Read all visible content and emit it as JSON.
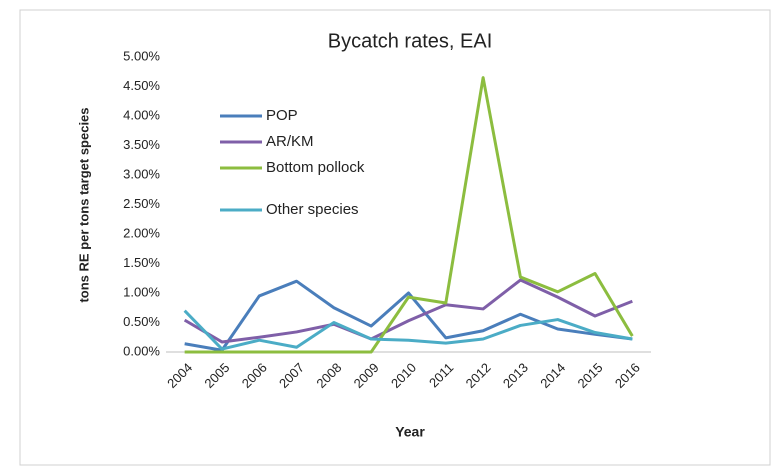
{
  "chart_data": {
    "type": "line",
    "title": "Bycatch rates, EAI",
    "x_label": "Year",
    "y_label": "tons RE per tons target species",
    "categories": [
      "2004",
      "2005",
      "2006",
      "2007",
      "2008",
      "2009",
      "2010",
      "2011",
      "2012",
      "2013",
      "2014",
      "2015",
      "2016"
    ],
    "ylim": [
      0,
      5
    ],
    "yticks": [
      {
        "value": 0,
        "label": "0.00%"
      },
      {
        "value": 0.5,
        "label": "0.50%"
      },
      {
        "value": 1,
        "label": "1.00%"
      },
      {
        "value": 1.5,
        "label": "1.50%"
      },
      {
        "value": 2,
        "label": "2.00%"
      },
      {
        "value": 2.5,
        "label": "2.50%"
      },
      {
        "value": 3,
        "label": "3.00%"
      },
      {
        "value": 3.5,
        "label": "3.50%"
      },
      {
        "value": 4,
        "label": "4.00%"
      },
      {
        "value": 4.5,
        "label": "4.50%"
      },
      {
        "value": 5,
        "label": "5.00%"
      }
    ],
    "series": [
      {
        "name": "POP",
        "color": "#4a7ebb",
        "values": [
          0.14,
          0.03,
          0.95,
          1.2,
          0.75,
          0.44,
          1.0,
          0.24,
          0.36,
          0.64,
          0.39,
          0.3,
          0.22
        ]
      },
      {
        "name": "AR/KM",
        "color": "#7f5fa8",
        "values": [
          0.54,
          0.17,
          0.25,
          0.34,
          0.47,
          0.22,
          0.53,
          0.8,
          0.73,
          1.22,
          0.93,
          0.61,
          0.86
        ]
      },
      {
        "name": "Bottom pollock",
        "color": "#8cbd3f",
        "values": [
          0,
          0,
          0,
          0,
          0,
          0,
          0.93,
          0.83,
          4.65,
          1.27,
          1.02,
          1.33,
          0.27
        ]
      },
      {
        "name": "Other species",
        "color": "#4bacc6",
        "values": [
          0.7,
          0.05,
          0.2,
          0.08,
          0.5,
          0.22,
          0.2,
          0.15,
          0.22,
          0.45,
          0.55,
          0.33,
          0.22
        ]
      }
    ]
  }
}
